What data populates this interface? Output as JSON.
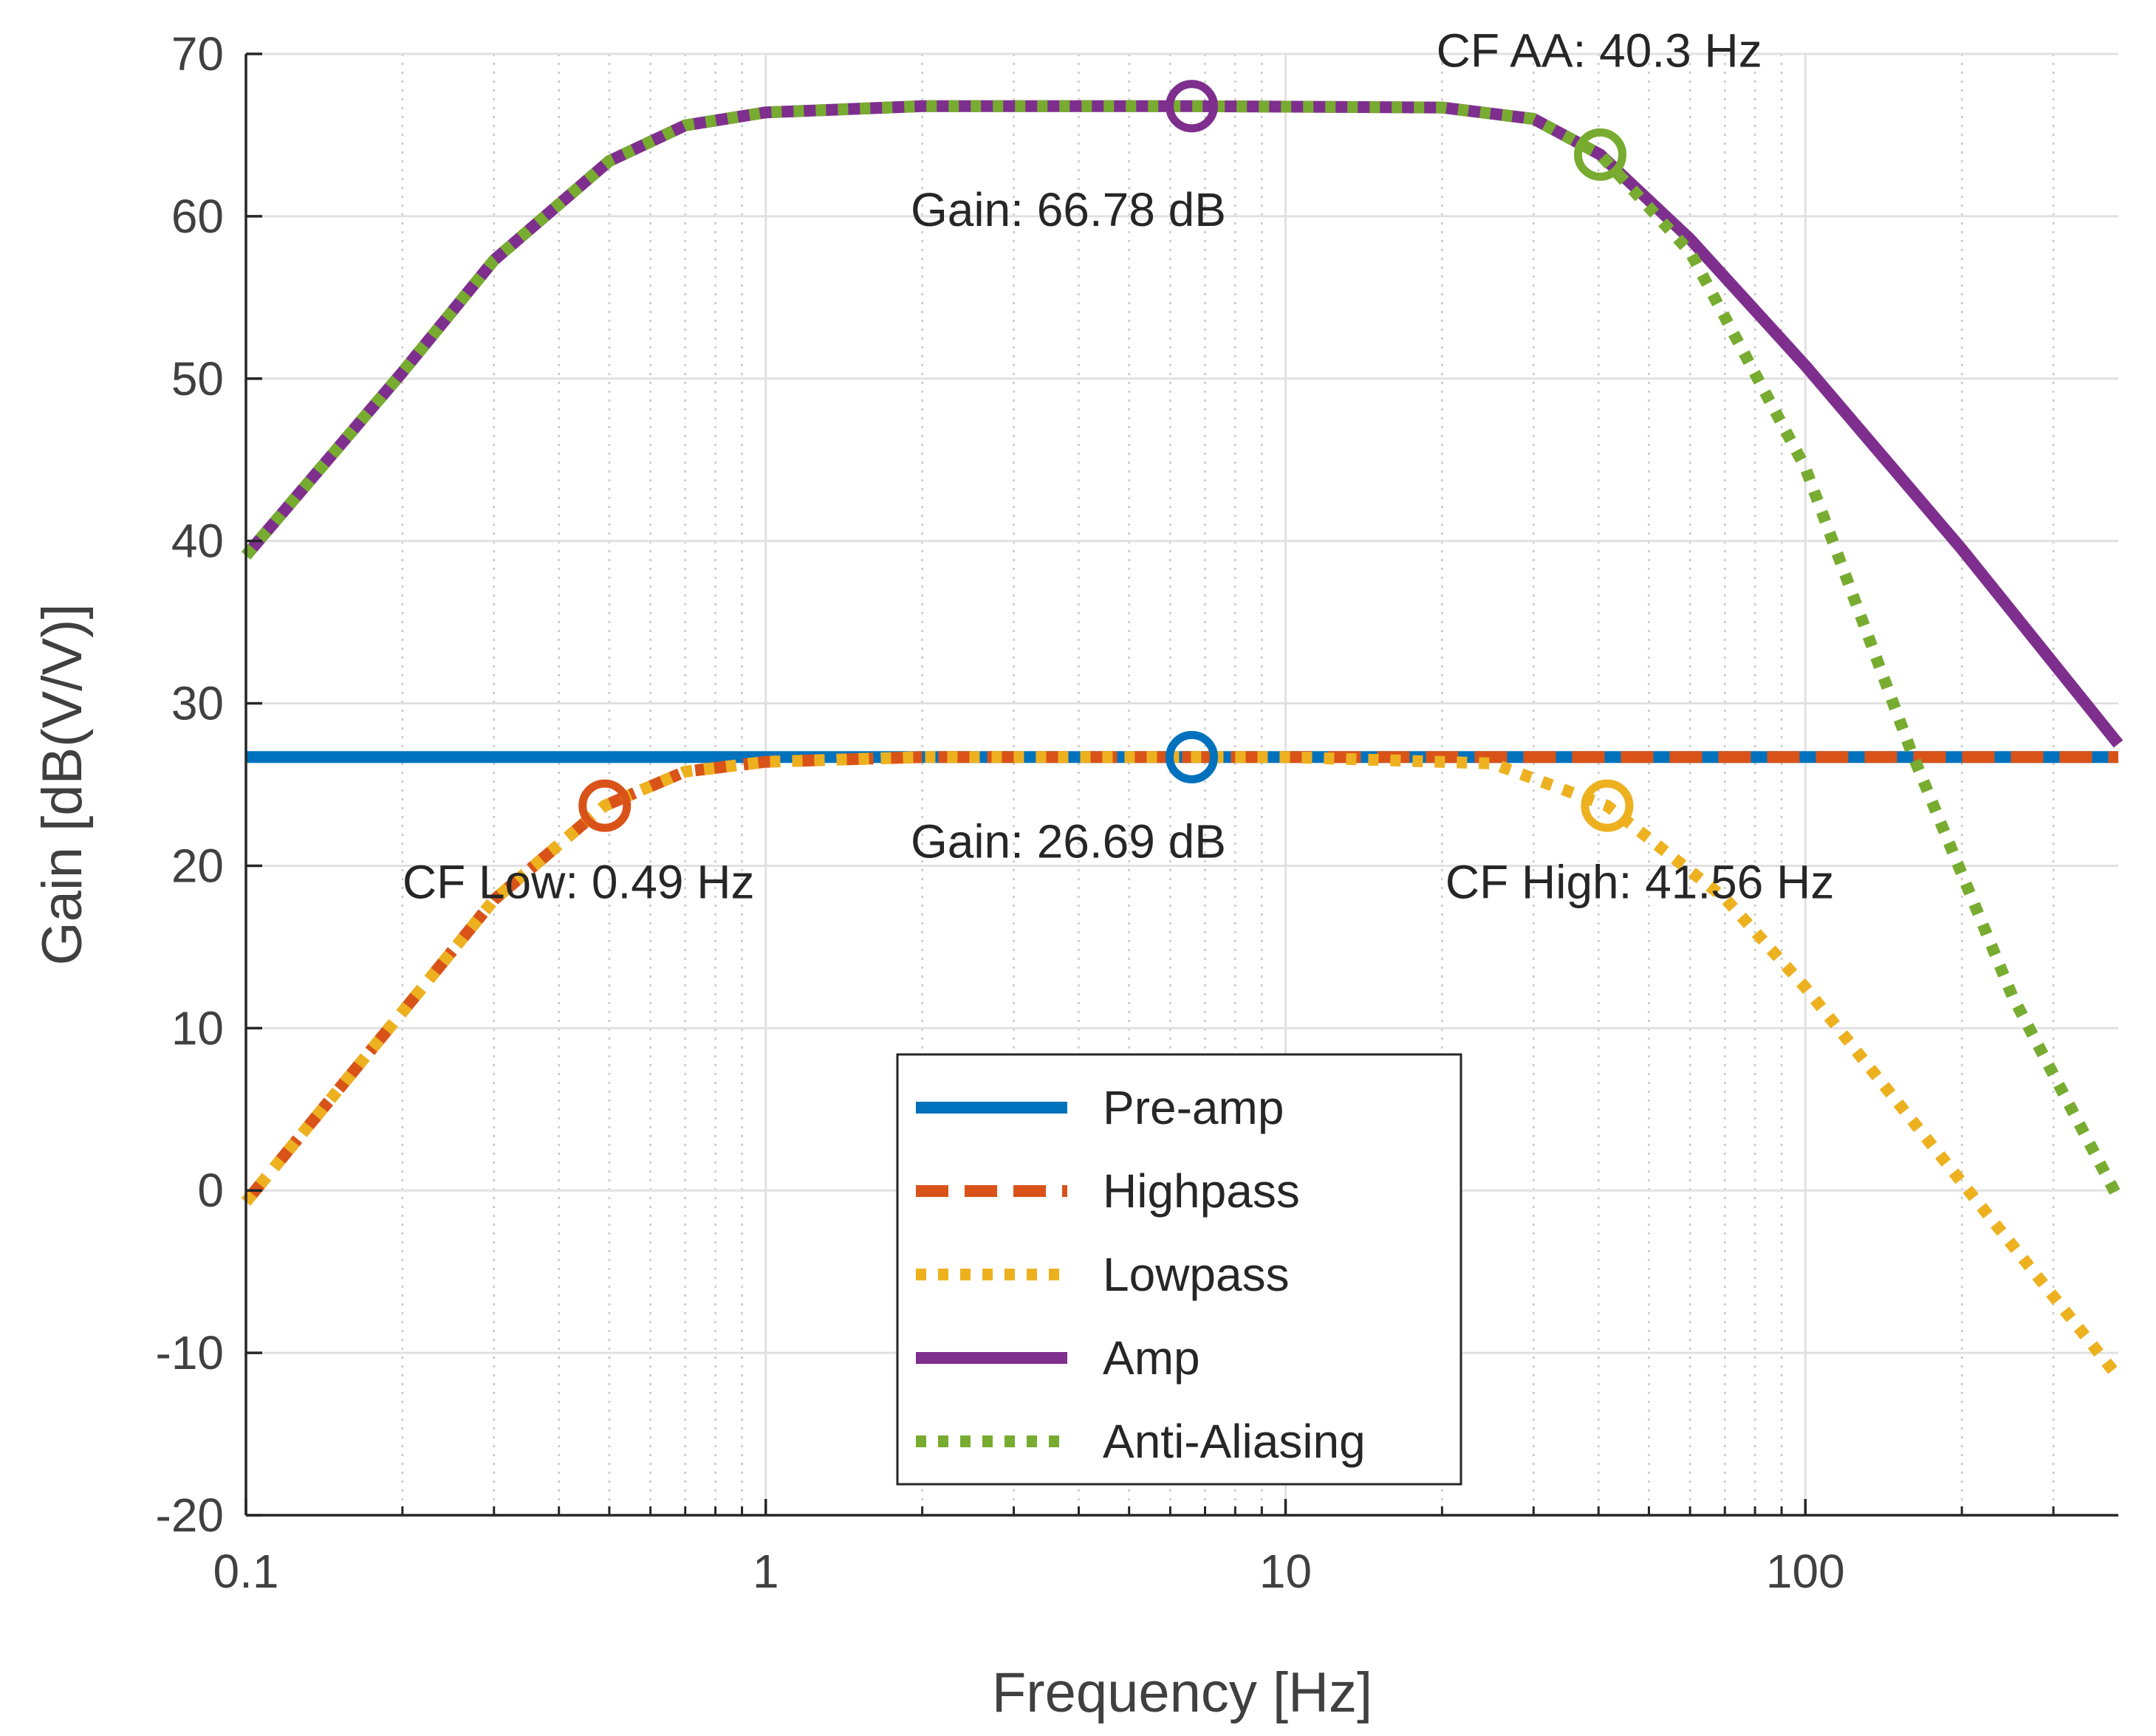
{
  "chart_data": {
    "type": "line",
    "xscale": "log",
    "xlabel": "Frequency [Hz]",
    "ylabel": "Gain [dB(V/V)]",
    "xlim": [
      0.1,
      400
    ],
    "ylim": [
      -20,
      70
    ],
    "grid": true,
    "minor_grid": true,
    "x_ticks": [
      0.1,
      1,
      10,
      100
    ],
    "x_tick_labels": [
      "0.1",
      "1",
      "10",
      "100"
    ],
    "y_ticks": [
      -20,
      -10,
      0,
      10,
      20,
      30,
      40,
      50,
      60,
      70
    ],
    "y_tick_labels": [
      "-20",
      "-10",
      "0",
      "10",
      "20",
      "30",
      "40",
      "50",
      "60",
      "70"
    ],
    "legend_position": "bottom-center",
    "series": [
      {
        "name": "Pre-amp",
        "color": "#0072BD",
        "style": "solid",
        "x": [
          0.1,
          400
        ],
        "y": [
          26.69,
          26.69
        ]
      },
      {
        "name": "Highpass",
        "color": "#D95319",
        "style": "dashed",
        "x": [
          0.1,
          0.2,
          0.3,
          0.49,
          0.7,
          1,
          2,
          10,
          40,
          100,
          400
        ],
        "y": [
          -0.7,
          11.0,
          17.9,
          23.7,
          25.8,
          26.4,
          26.69,
          26.69,
          26.69,
          26.69,
          26.69
        ]
      },
      {
        "name": "Lowpass",
        "color": "#EDB120",
        "style": "dotted",
        "x": [
          0.1,
          0.2,
          0.3,
          0.49,
          0.7,
          1,
          2,
          10,
          25,
          41.56,
          70,
          100,
          200,
          400
        ],
        "y": [
          -0.7,
          11.0,
          17.9,
          23.7,
          25.8,
          26.4,
          26.69,
          26.69,
          26.3,
          23.7,
          18.0,
          12.5,
          0.5,
          -11.5
        ]
      },
      {
        "name": "Amp",
        "color": "#7E2F8E",
        "style": "solid",
        "x": [
          0.1,
          0.2,
          0.3,
          0.5,
          0.7,
          1,
          2,
          6.6,
          20,
          30,
          40.3,
          60,
          100,
          200,
          400
        ],
        "y": [
          39.1,
          50.4,
          57.3,
          63.4,
          65.6,
          66.4,
          66.78,
          66.78,
          66.7,
          66.0,
          63.8,
          58.6,
          50.8,
          39.5,
          27.5
        ]
      },
      {
        "name": "Anti-Aliasing",
        "color": "#77AC30",
        "style": "dotted",
        "x": [
          0.1,
          0.2,
          0.3,
          0.5,
          0.7,
          1,
          2,
          6.6,
          20,
          30,
          40.3,
          60,
          100,
          160,
          250,
          400
        ],
        "y": [
          39.1,
          50.4,
          57.3,
          63.4,
          65.6,
          66.4,
          66.78,
          66.78,
          66.7,
          66.0,
          63.8,
          57.8,
          44.5,
          27.0,
          12.0,
          -0.5
        ]
      }
    ],
    "markers": [
      {
        "x": 0.49,
        "y": 23.7,
        "color": "#D95319"
      },
      {
        "x": 6.6,
        "y": 26.69,
        "color": "#0072BD"
      },
      {
        "x": 41.56,
        "y": 23.7,
        "color": "#EDB120"
      },
      {
        "x": 6.6,
        "y": 66.78,
        "color": "#7E2F8E"
      },
      {
        "x": 40.3,
        "y": 63.8,
        "color": "#77AC30"
      }
    ],
    "annotations": [
      {
        "text": "CF AA: 40.3 Hz",
        "x": 19.5,
        "y": 69.2
      },
      {
        "text": "Gain: 66.78 dB",
        "x": 1.9,
        "y": 59.4
      },
      {
        "text": "Gain: 26.69 dB",
        "x": 1.9,
        "y": 20.5
      },
      {
        "text": "CF Low: 0.49 Hz",
        "x": 0.2,
        "y": 18.0
      },
      {
        "text": "CF High: 41.56 Hz",
        "x": 20.3,
        "y": 18.0
      }
    ]
  }
}
